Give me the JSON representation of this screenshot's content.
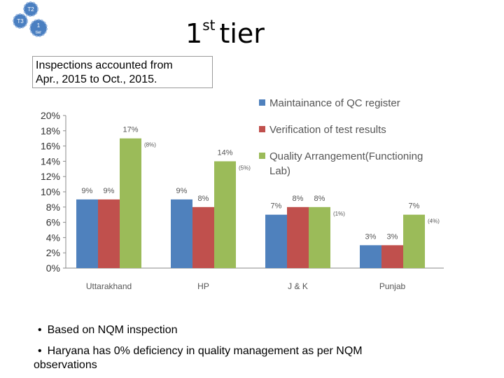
{
  "header": {
    "title_main": "1",
    "title_sup": "st",
    "title_word": "tier",
    "callout_line1": "Inspections accounted from",
    "callout_line2": "Apr., 2015 to Oct., 2015."
  },
  "logo": {
    "label_tl": "T2",
    "label_l": "T3",
    "label_center": "1",
    "label_center_sub": "tier"
  },
  "chart_data": {
    "type": "bar",
    "categories": [
      "Uttarakhand",
      "HP",
      "J & K",
      "Punjab"
    ],
    "series": [
      {
        "name": "Maintainance of QC register",
        "values": [
          9,
          9,
          7,
          3
        ],
        "labels": [
          "9%",
          "9%",
          "7%",
          "3%"
        ],
        "color": "#4f81bd"
      },
      {
        "name": "Verification of test results",
        "values": [
          9,
          8,
          8,
          3
        ],
        "labels": [
          "9%",
          "8%",
          "8%",
          "3%"
        ],
        "color": "#c0504d"
      },
      {
        "name": "Quality Arrangement(Functioning Lab)",
        "values": [
          17,
          14,
          8,
          7
        ],
        "labels": [
          "17%",
          "14%",
          "8%",
          "7%"
        ],
        "color": "#9bbb59"
      }
    ],
    "annotations": [
      "(8%)",
      "(5%)",
      "(1%)",
      "(4%)"
    ],
    "y_ticks": [
      "0%",
      "2%",
      "4%",
      "6%",
      "8%",
      "10%",
      "12%",
      "14%",
      "16%",
      "18%",
      "20%"
    ],
    "ylim": [
      0,
      20
    ],
    "legend_position": "top-right",
    "grid": false
  },
  "notes": {
    "bullet_symbol": "•",
    "bullet1": "Based on NQM inspection",
    "bullet2_line1": "Haryana has 0% deficiency in quality management as per NQM",
    "bullet2_line2": "observations"
  }
}
